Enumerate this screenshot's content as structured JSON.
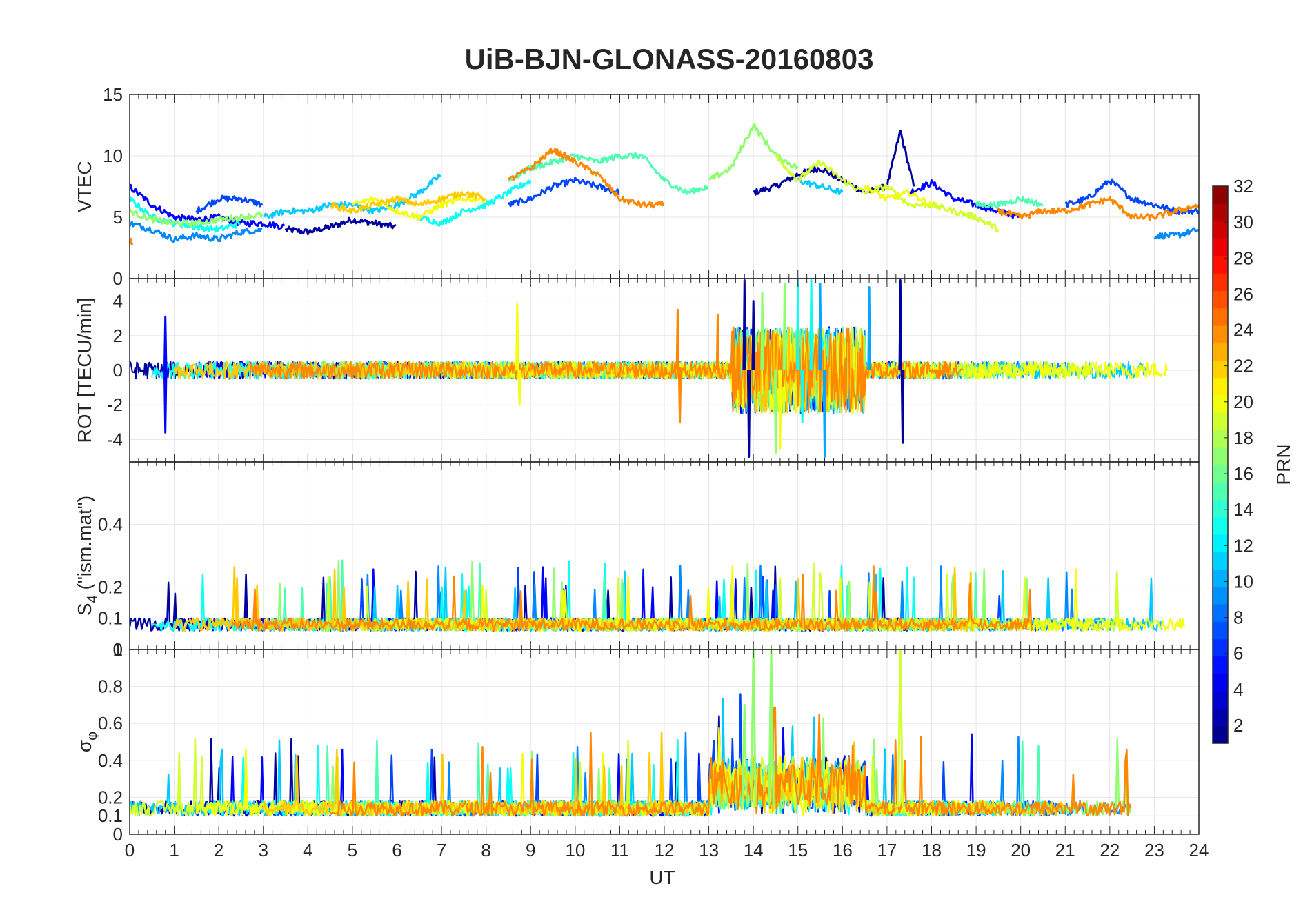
{
  "figure": {
    "title": "UiB-BJN-GLONASS-20160803",
    "xlabel": "UT",
    "x_ticks": [
      "0",
      "1",
      "2",
      "3",
      "4",
      "5",
      "6",
      "7",
      "8",
      "9",
      "10",
      "11",
      "12",
      "13",
      "14",
      "15",
      "16",
      "17",
      "18",
      "19",
      "20",
      "21",
      "22",
      "23",
      "24"
    ]
  },
  "colorbar": {
    "label": "PRN",
    "ticks": [
      "2",
      "4",
      "6",
      "8",
      "10",
      "12",
      "14",
      "16",
      "18",
      "20",
      "22",
      "24",
      "26",
      "28",
      "30",
      "32"
    ],
    "colormap": "jet",
    "range": [
      1,
      32
    ]
  },
  "chart_data": [
    {
      "type": "line",
      "panel": "vtec",
      "ylabel": "VTEC",
      "ylim": [
        0,
        15
      ],
      "xlim": [
        0,
        24
      ],
      "yticks": [
        "0",
        "5",
        "10",
        "15"
      ],
      "grid": true,
      "series_summary": "Many GLONASS satellites (color by PRN). VTEC ~3-5 at 0-5 UT, rising to 6-10 around 8-17 UT with peak ~13 near 14 UT and ~12 at 17.3 UT, falling back to ~5-7 after 18 UT.",
      "series": [
        {
          "name": "PRN 2",
          "prn": 2,
          "x": [
            3.5,
            4.0,
            4.5,
            5.0,
            5.5,
            6.0,
            14.0,
            14.5,
            15.0,
            15.5,
            16.0,
            16.5,
            17.0,
            17.3,
            17.6
          ],
          "y": [
            4.0,
            3.8,
            4.2,
            4.8,
            4.5,
            4.2,
            7.0,
            7.5,
            8.5,
            9.0,
            8.0,
            7.0,
            7.5,
            12.0,
            7.5
          ]
        },
        {
          "name": "PRN 5",
          "prn": 5,
          "x": [
            0.0,
            0.5,
            1.0,
            1.5,
            2.0,
            2.5,
            3.0,
            3.5,
            17.5,
            18.0,
            18.5,
            19.0,
            19.5,
            20.0
          ],
          "y": [
            7.5,
            6.0,
            5.0,
            4.8,
            5.0,
            4.5,
            4.5,
            4.2,
            7.0,
            7.8,
            6.5,
            6.0,
            5.5,
            5.0
          ]
        },
        {
          "name": "PRN 7",
          "prn": 7,
          "x": [
            1.5,
            2.0,
            2.5,
            3.0,
            8.5,
            9.0,
            9.5,
            10.0,
            10.5,
            11.0,
            21.0,
            21.5,
            22.0,
            22.5,
            23.0,
            23.5,
            24.0
          ],
          "y": [
            5.5,
            6.5,
            6.5,
            6.0,
            6.0,
            6.5,
            7.5,
            8.0,
            7.5,
            7.0,
            6.0,
            6.5,
            8.0,
            6.5,
            6.0,
            5.5,
            5.5
          ]
        },
        {
          "name": "PRN 9",
          "prn": 9,
          "x": [
            0.0,
            0.5,
            1.0,
            1.5,
            2.0,
            2.5,
            3.0,
            23.0,
            23.5,
            24.0
          ],
          "y": [
            4.5,
            4.0,
            3.2,
            3.5,
            3.2,
            3.8,
            4.0,
            3.5,
            3.5,
            4.0
          ]
        },
        {
          "name": "PRN 11",
          "prn": 11,
          "x": [
            3.0,
            3.5,
            4.0,
            4.5,
            5.0,
            5.5,
            6.0,
            6.5,
            7.0,
            15.0,
            15.5,
            16.0
          ],
          "y": [
            5.0,
            5.5,
            5.5,
            6.0,
            6.0,
            5.5,
            6.0,
            7.0,
            8.5,
            8.0,
            7.5,
            7.0
          ]
        },
        {
          "name": "PRN 13",
          "prn": 13,
          "x": [
            0.0,
            0.5,
            1.0,
            1.5,
            2.0,
            2.5,
            6.5,
            7.0,
            7.5,
            8.0,
            8.5,
            9.0
          ],
          "y": [
            6.5,
            5.0,
            4.5,
            4.2,
            4.0,
            4.5,
            5.0,
            4.5,
            5.5,
            6.0,
            7.0,
            8.0
          ]
        },
        {
          "name": "PRN 15",
          "prn": 15,
          "x": [
            8.5,
            9.0,
            9.5,
            10.0,
            10.5,
            11.0,
            11.5,
            12.0,
            12.5,
            13.0,
            19.0,
            19.5,
            20.0,
            20.5
          ],
          "y": [
            8.0,
            9.0,
            9.5,
            10.0,
            9.5,
            10.0,
            10.0,
            8.0,
            7.0,
            7.5,
            6.0,
            6.0,
            6.5,
            6.0
          ]
        },
        {
          "name": "PRN 17",
          "prn": 17,
          "x": [
            0.0,
            0.5,
            1.0,
            1.5,
            2.0,
            2.5,
            3.0,
            13.0,
            13.5,
            14.0,
            14.5,
            15.0
          ],
          "y": [
            5.5,
            4.8,
            4.5,
            4.5,
            4.8,
            5.0,
            5.2,
            8.0,
            9.0,
            12.5,
            10.0,
            9.0
          ]
        },
        {
          "name": "PRN 19",
          "prn": 19,
          "x": [
            14.5,
            15.0,
            15.5,
            16.0,
            16.5,
            17.0,
            17.5,
            18.0,
            18.5,
            19.0,
            19.5
          ],
          "y": [
            10.0,
            8.0,
            9.5,
            8.0,
            7.0,
            7.5,
            6.0,
            6.0,
            5.5,
            5.0,
            4.0
          ]
        },
        {
          "name": "PRN 20",
          "prn": 20,
          "x": [
            5.0,
            5.5,
            6.0,
            6.5,
            7.0,
            7.5,
            8.0,
            16.5,
            17.0,
            17.5,
            18.0
          ],
          "y": [
            6.0,
            6.5,
            5.5,
            5.0,
            6.0,
            6.5,
            6.5,
            7.5,
            6.5,
            7.0,
            6.0
          ]
        },
        {
          "name": "PRN 22",
          "prn": 22,
          "x": [
            4.5,
            5.0,
            5.5,
            6.0,
            6.5,
            7.0,
            7.5,
            8.0
          ],
          "y": [
            6.0,
            5.5,
            6.0,
            6.5,
            6.0,
            6.5,
            7.0,
            6.5
          ]
        },
        {
          "name": "PRN 24",
          "prn": 24,
          "x": [
            0.0,
            0.1,
            8.5,
            9.0,
            9.5,
            10.0,
            10.5,
            11.0,
            11.5,
            12.0,
            19.5,
            20.0,
            20.5,
            21.0,
            21.5,
            22.0,
            22.5,
            23.0,
            23.5,
            24.0
          ],
          "y": [
            3.0,
            3.0,
            8.0,
            9.0,
            10.5,
            9.5,
            8.5,
            6.5,
            6.0,
            6.0,
            5.5,
            5.0,
            5.5,
            5.5,
            6.0,
            6.5,
            5.0,
            5.0,
            5.5,
            6.0
          ]
        }
      ]
    },
    {
      "type": "line",
      "panel": "rot",
      "ylabel": "ROT [TECU/min]",
      "ylim": [
        -5.3,
        5.3
      ],
      "xlim": [
        0,
        24
      ],
      "yticks": [
        "-4",
        "-2",
        "0",
        "2",
        "4"
      ],
      "grid": true,
      "series_summary": "ROT near 0 with noise of about ±1 TECU/min; spikes to about ±3 near 0.8 h and 8.7 h; strong activity up to ±5 between 13.5 and 16.5 UT; spike of +5 and -4.2 at 17.3 UT.",
      "series": [
        {
          "name": "PRN 5",
          "prn": 5,
          "x": [
            0.8,
            0.8,
            0.8
          ],
          "y": [
            0,
            3.1,
            -3.6
          ]
        },
        {
          "name": "PRN 2",
          "prn": 2,
          "x": [
            13.8,
            13.9,
            14.0,
            17.3,
            17.35
          ],
          "y": [
            5.2,
            -5.0,
            4.0,
            5.2,
            -4.2
          ]
        },
        {
          "name": "PRN 10",
          "prn": 10,
          "x": [
            15.5,
            15.6,
            16.6
          ],
          "y": [
            5.0,
            -5.0,
            4.8
          ]
        },
        {
          "name": "PRN 13",
          "prn": 13,
          "x": [
            15.0,
            15.1,
            15.3
          ],
          "y": [
            5.2,
            -3.0,
            5.2
          ]
        },
        {
          "name": "PRN 17",
          "prn": 17,
          "x": [
            14.2,
            14.5,
            14.7
          ],
          "y": [
            4.5,
            -4.8,
            5.0
          ]
        },
        {
          "name": "PRN 20",
          "prn": 20,
          "x": [
            8.7,
            8.75,
            14.6
          ],
          "y": [
            3.8,
            -2.0,
            -4.5
          ]
        },
        {
          "name": "PRN 24",
          "prn": 24,
          "x": [
            12.3,
            12.35,
            13.2
          ],
          "y": [
            3.5,
            -3.0,
            3.2
          ]
        }
      ]
    },
    {
      "type": "line",
      "panel": "s4",
      "ylabel": "S4 (\"ism.mat\")",
      "ylabel_parts": {
        "main": "S",
        "sub": "4",
        "rest": " (\"ism.mat\")"
      },
      "ylim": [
        0,
        0.6
      ],
      "xlim": [
        0,
        24
      ],
      "yticks": [
        "0",
        "0.1",
        "0.2",
        "0.4"
      ],
      "grid": true,
      "series_summary": "S4 mostly 0.05-0.1 all day with short spikes to 0.2-0.26, e.g. at 1.4, 3.7, 9.5, 17.8 UT."
    },
    {
      "type": "line",
      "panel": "sigma_phi",
      "ylabel": "σφ",
      "ylabel_parts": {
        "main": "σ",
        "sub": "φ"
      },
      "ylim": [
        0,
        1
      ],
      "xlim": [
        0,
        24
      ],
      "yticks": [
        "0",
        "0.1",
        "0.2",
        "0.4",
        "0.6",
        "0.8",
        "1"
      ],
      "grid": true,
      "series_summary": "σφ baseline 0.1-0.2; spikes to ~0.45-0.5 at 1.7, 5.3, 9.5, 11.2 UT; large activity 13-16 UT with peaks of 1.0 near 14 and 14.4 UT; spike to 1.0 at 17.3 UT; about 0.1-0.15 after 18 UT."
    }
  ]
}
